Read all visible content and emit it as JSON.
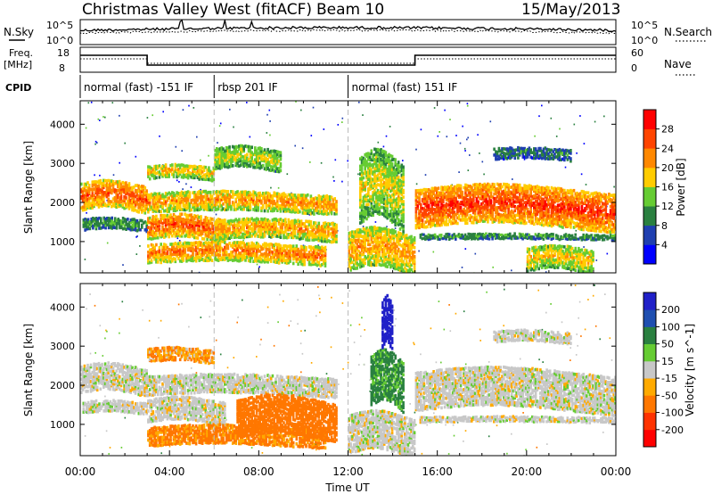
{
  "header": {
    "station": "Christmas Valley West (fitACF)",
    "beam": "Beam 10",
    "date": "15/May/2013"
  },
  "nsky_panel": {
    "label": "N.Sky",
    "right_label": "N.Search",
    "ticks_left": [
      "10^5",
      "10^0"
    ],
    "ticks_right": [
      "10^5",
      "10^0"
    ]
  },
  "freq_panel": {
    "label_line1": "Freq.",
    "label_line2": "[MHz]",
    "right_label": "Nave",
    "ticks_left": [
      "18",
      "8"
    ],
    "ticks_right": [
      "60",
      "0"
    ]
  },
  "cpid_panel": {
    "label": "CPID",
    "segments": [
      {
        "label": "normal (fast) -151 IF",
        "start_hour": 0,
        "end_hour": 6
      },
      {
        "label": "rbsp 201 IF",
        "start_hour": 6,
        "end_hour": 12
      },
      {
        "label": "normal (fast) 151 IF",
        "start_hour": 12,
        "end_hour": 24
      }
    ]
  },
  "chart_data": [
    {
      "type": "heatmap",
      "name": "power",
      "ylabel": "Slant Range [km]",
      "xlabel": "",
      "ylim": [
        200,
        4600
      ],
      "yticks": [
        "4000",
        "3000",
        "2000",
        "1000"
      ],
      "colorbar": {
        "label": "Power [dB]",
        "ticks": [
          "28",
          "24",
          "20",
          "16",
          "12",
          "8",
          "4"
        ],
        "colors": [
          "#0000ff",
          "#1f3fb0",
          "#2a8040",
          "#66cc33",
          "#ffcc00",
          "#ff8800",
          "#ff4400",
          "#ff0000"
        ],
        "range": [
          0,
          32
        ]
      },
      "features": [
        {
          "x0": 0.0,
          "x1": 3.0,
          "y0": 1850,
          "y1": 2550,
          "level": 26
        },
        {
          "x0": 0.1,
          "x1": 3.0,
          "y0": 1350,
          "y1": 1650,
          "level": 12
        },
        {
          "x0": 3.0,
          "x1": 6.5,
          "y0": 1100,
          "y1": 1700,
          "level": 26
        },
        {
          "x0": 3.0,
          "x1": 11.5,
          "y0": 1800,
          "y1": 2300,
          "level": 22
        },
        {
          "x0": 3.0,
          "x1": 11.0,
          "y0": 500,
          "y1": 1000,
          "level": 24
        },
        {
          "x0": 6.0,
          "x1": 11.5,
          "y0": 1100,
          "y1": 1600,
          "level": 22
        },
        {
          "x0": 3.0,
          "x1": 6.0,
          "y0": 2650,
          "y1": 3000,
          "level": 20
        },
        {
          "x0": 6.0,
          "x1": 9.0,
          "y0": 2900,
          "y1": 3450,
          "level": 17
        },
        {
          "x0": 12.0,
          "x1": 15.0,
          "y0": 300,
          "y1": 1300,
          "level": 22
        },
        {
          "x0": 12.5,
          "x1": 14.5,
          "y0": 1500,
          "y1": 3200,
          "level": 18
        },
        {
          "x0": 15.0,
          "x1": 24.0,
          "y0": 1400,
          "y1": 2400,
          "level": 28
        },
        {
          "x0": 15.2,
          "x1": 24.0,
          "y0": 1100,
          "y1": 1250,
          "level": 12
        },
        {
          "x0": 18.5,
          "x1": 22.0,
          "y0": 3150,
          "y1": 3450,
          "level": 10
        },
        {
          "x0": 20.0,
          "x1": 23.0,
          "y0": 300,
          "y1": 900,
          "level": 20
        }
      ]
    },
    {
      "type": "heatmap",
      "name": "velocity",
      "ylabel": "Slant Range [km]",
      "xlabel": "Time UT",
      "ylim": [
        200,
        4600
      ],
      "yticks": [
        "4000",
        "3000",
        "2000",
        "1000"
      ],
      "xticks": [
        "00:00",
        "04:00",
        "08:00",
        "12:00",
        "16:00",
        "20:00",
        "00:00"
      ],
      "xlim": [
        0,
        24
      ],
      "colorbar": {
        "label": "Velocity [m s^-1]",
        "ticks": [
          "200",
          "100",
          "50",
          "15",
          "-15",
          "-50",
          "-100",
          "-200"
        ],
        "colors": [
          "#2020c8",
          "#1f4fb0",
          "#2a8040",
          "#66cc33",
          "#c8c8c8",
          "#ffaa00",
          "#ff7700",
          "#ff3300",
          "#ff0000"
        ],
        "range": [
          -250,
          250
        ]
      },
      "features": [
        {
          "x0": 0.0,
          "x1": 3.0,
          "y0": 1850,
          "y1": 2550,
          "vel": 0
        },
        {
          "x0": 0.1,
          "x1": 3.0,
          "y0": 1350,
          "y1": 1650,
          "vel": 0
        },
        {
          "x0": 3.0,
          "x1": 11.5,
          "y0": 1800,
          "y1": 2300,
          "vel": 0
        },
        {
          "x0": 3.0,
          "x1": 6.5,
          "y0": 1100,
          "y1": 1700,
          "vel": 0
        },
        {
          "x0": 3.0,
          "x1": 11.0,
          "y0": 500,
          "y1": 1000,
          "vel": -40
        },
        {
          "x0": 7.0,
          "x1": 11.5,
          "y0": 700,
          "y1": 1700,
          "vel": -55
        },
        {
          "x0": 3.0,
          "x1": 6.0,
          "y0": 2650,
          "y1": 3000,
          "vel": -30
        },
        {
          "x0": 12.0,
          "x1": 15.0,
          "y0": 300,
          "y1": 1300,
          "vel": 0
        },
        {
          "x0": 13.0,
          "x1": 14.5,
          "y0": 1500,
          "y1": 2800,
          "vel": 40
        },
        {
          "x0": 13.5,
          "x1": 14.0,
          "y0": 3000,
          "y1": 4200,
          "vel": 220
        },
        {
          "x0": 15.0,
          "x1": 24.0,
          "y0": 1400,
          "y1": 2400,
          "vel": 0
        },
        {
          "x0": 15.2,
          "x1": 24.0,
          "y0": 1100,
          "y1": 1250,
          "vel": 0
        },
        {
          "x0": 18.5,
          "x1": 22.0,
          "y0": 3150,
          "y1": 3450,
          "vel": 0
        }
      ]
    }
  ]
}
